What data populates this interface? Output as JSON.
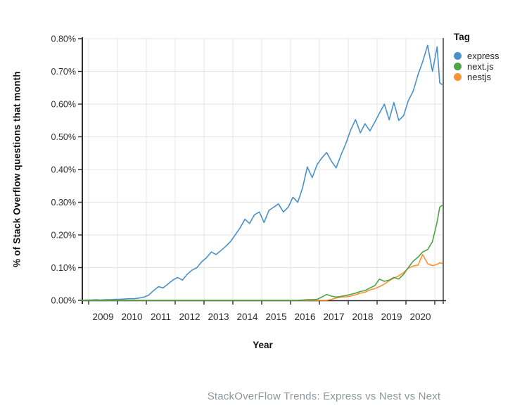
{
  "caption": "StackOverFlow Trends: Express vs Nest vs Next",
  "chart_data": {
    "type": "line",
    "title": "",
    "xlabel": "Year",
    "ylabel": "% of Stack Overflow questions that month",
    "legend_title": "Tag",
    "legend_position": "right",
    "grid": true,
    "xlim": [
      2008.78,
      2021.29
    ],
    "ylim": [
      "0.00%",
      "0.80%"
    ],
    "x_tick_labels": [
      "2009",
      "2010",
      "2011",
      "2012",
      "2013",
      "2014",
      "2015",
      "2016",
      "2017",
      "2018",
      "2019",
      "2020"
    ],
    "y_tick_labels": [
      "0.00%",
      "0.10%",
      "0.20%",
      "0.30%",
      "0.40%",
      "0.50%",
      "0.60%",
      "0.70%",
      "0.80%"
    ],
    "y_units": "percent of Stack Overflow questions that month",
    "x": [
      2008.78,
      2008.92,
      2009.08,
      2009.25,
      2009.42,
      2009.58,
      2009.75,
      2009.92,
      2010.08,
      2010.25,
      2010.42,
      2010.58,
      2010.75,
      2010.92,
      2011.08,
      2011.25,
      2011.42,
      2011.58,
      2011.75,
      2011.92,
      2012.08,
      2012.25,
      2012.42,
      2012.58,
      2012.75,
      2012.92,
      2013.08,
      2013.25,
      2013.42,
      2013.58,
      2013.75,
      2013.92,
      2014.08,
      2014.25,
      2014.42,
      2014.58,
      2014.75,
      2014.92,
      2015.08,
      2015.25,
      2015.42,
      2015.58,
      2015.75,
      2015.92,
      2016.08,
      2016.25,
      2016.42,
      2016.58,
      2016.75,
      2016.92,
      2017.08,
      2017.25,
      2017.42,
      2017.58,
      2017.75,
      2017.92,
      2018.08,
      2018.25,
      2018.42,
      2018.58,
      2018.75,
      2018.92,
      2019.08,
      2019.25,
      2019.42,
      2019.58,
      2019.75,
      2019.92,
      2020.08,
      2020.25,
      2020.42,
      2020.58,
      2020.75,
      2020.92,
      2021.08,
      2021.17,
      2021.25
    ],
    "series": [
      {
        "name": "express",
        "color": "#4a90c9",
        "values": [
          0.0,
          0.001,
          0.001,
          0.002,
          0.001,
          0.002,
          0.002,
          0.003,
          0.003,
          0.004,
          0.005,
          0.005,
          0.007,
          0.01,
          0.016,
          0.03,
          0.042,
          0.038,
          0.05,
          0.062,
          0.07,
          0.062,
          0.08,
          0.092,
          0.1,
          0.118,
          0.13,
          0.148,
          0.14,
          0.152,
          0.165,
          0.18,
          0.2,
          0.222,
          0.248,
          0.235,
          0.262,
          0.27,
          0.238,
          0.275,
          0.285,
          0.295,
          0.27,
          0.285,
          0.315,
          0.3,
          0.345,
          0.408,
          0.375,
          0.415,
          0.435,
          0.452,
          0.425,
          0.405,
          0.445,
          0.48,
          0.52,
          0.553,
          0.512,
          0.54,
          0.518,
          0.545,
          0.572,
          0.6,
          0.552,
          0.605,
          0.55,
          0.565,
          0.61,
          0.64,
          0.69,
          0.73,
          0.78,
          0.7,
          0.775,
          0.665,
          0.66
        ]
      },
      {
        "name": "next.js",
        "color": "#4ba446",
        "values": [
          0.0,
          0.0,
          0.0,
          0.0,
          0.0,
          0.0,
          0.0,
          0.0,
          0.0,
          0.0,
          0.0,
          0.0,
          0.0,
          0.0,
          0.0,
          0.0,
          0.0,
          0.0,
          0.0,
          0.0,
          0.0,
          0.0,
          0.0,
          0.0,
          0.0,
          0.0,
          0.0,
          0.0,
          0.0,
          0.0,
          0.0,
          0.0,
          0.0,
          0.0,
          0.0,
          0.0,
          0.0,
          0.0,
          0.0,
          0.0,
          0.0,
          0.0,
          0.0,
          0.0,
          0.0,
          0.0,
          0.001,
          0.002,
          0.002,
          0.003,
          0.01,
          0.018,
          0.013,
          0.01,
          0.012,
          0.015,
          0.018,
          0.022,
          0.027,
          0.03,
          0.038,
          0.045,
          0.065,
          0.058,
          0.062,
          0.07,
          0.065,
          0.08,
          0.1,
          0.12,
          0.132,
          0.148,
          0.155,
          0.18,
          0.24,
          0.285,
          0.29
        ]
      },
      {
        "name": "nestjs",
        "color": "#fd9132",
        "values": [
          0.0,
          0.0,
          0.0,
          0.0,
          0.0,
          0.0,
          0.0,
          0.0,
          0.0,
          0.0,
          0.0,
          0.0,
          0.0,
          0.0,
          0.0,
          0.0,
          0.0,
          0.0,
          0.0,
          0.0,
          0.0,
          0.0,
          0.0,
          0.0,
          0.0,
          0.0,
          0.0,
          0.0,
          0.0,
          0.0,
          0.0,
          0.0,
          0.0,
          0.0,
          0.0,
          0.0,
          0.0,
          0.0,
          0.0,
          0.0,
          0.0,
          0.0,
          0.0,
          0.0,
          0.0,
          0.0,
          0.0,
          0.0,
          0.0,
          0.0,
          0.0,
          0.0,
          0.003,
          0.007,
          0.01,
          0.011,
          0.013,
          0.017,
          0.022,
          0.025,
          0.032,
          0.036,
          0.042,
          0.05,
          0.06,
          0.068,
          0.075,
          0.085,
          0.098,
          0.105,
          0.108,
          0.14,
          0.112,
          0.106,
          0.11,
          0.115,
          0.113
        ]
      }
    ]
  }
}
